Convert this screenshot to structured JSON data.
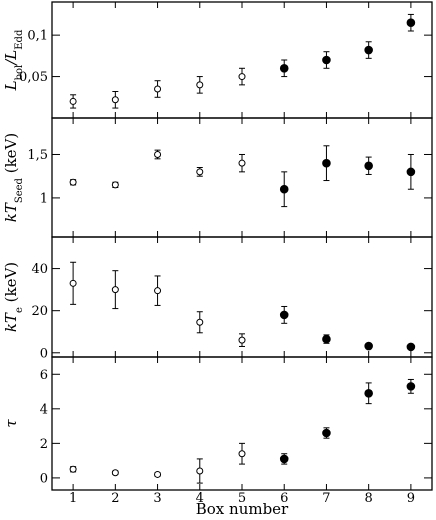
{
  "figure": {
    "xlabel": "Box number"
  },
  "chart_data": [
    {
      "type": "scatter",
      "panel": "lbol",
      "ylabel_main": "L",
      "ylabel_sub": "bol",
      "ylabel_slash": "/L",
      "ylabel_sub2": "Edd",
      "ylim": [
        0,
        0.14
      ],
      "yticks": [
        0.05,
        0.1
      ],
      "ytick_labels": [
        "0,05",
        "0,1"
      ],
      "x": [
        1,
        2,
        3,
        4,
        5,
        6,
        7,
        8,
        9
      ],
      "y": [
        0.02,
        0.022,
        0.035,
        0.04,
        0.05,
        0.06,
        0.07,
        0.082,
        0.115
      ],
      "yerr": [
        0.008,
        0.01,
        0.01,
        0.01,
        0.01,
        0.01,
        0.01,
        0.01,
        0.01
      ],
      "filled": [
        false,
        false,
        false,
        false,
        false,
        true,
        true,
        true,
        true
      ]
    },
    {
      "type": "scatter",
      "panel": "kt_seed",
      "ylabel_main": "kT",
      "ylabel_sub": "Seed",
      "ylabel_unit": " (keV)",
      "ylim": [
        0.55,
        1.92
      ],
      "yticks": [
        1,
        1.5
      ],
      "ytick_labels": [
        "1",
        "1,5"
      ],
      "x": [
        1,
        2,
        3,
        4,
        5,
        6,
        7,
        8,
        9
      ],
      "y": [
        1.18,
        1.15,
        1.5,
        1.3,
        1.4,
        1.1,
        1.4,
        1.37,
        1.3
      ],
      "yerr": [
        0.03,
        0.03,
        0.05,
        0.05,
        0.1,
        0.2,
        0.2,
        0.1,
        0.2
      ],
      "filled": [
        false,
        false,
        false,
        false,
        false,
        true,
        true,
        true,
        true
      ]
    },
    {
      "type": "scatter",
      "panel": "kt_e",
      "ylabel_main": "kT",
      "ylabel_sub": "e",
      "ylabel_unit": " (keV)",
      "ylim": [
        -2,
        55
      ],
      "yticks": [
        0,
        20,
        40
      ],
      "ytick_labels": [
        "0",
        "20",
        "40"
      ],
      "x": [
        1,
        2,
        3,
        4,
        5,
        6,
        7,
        8,
        9
      ],
      "y": [
        33,
        30,
        29.5,
        14.5,
        6,
        18,
        6.5,
        3.2,
        2.8
      ],
      "yerr": [
        10,
        9,
        7,
        5,
        3,
        4,
        2,
        0,
        0
      ],
      "filled": [
        false,
        false,
        false,
        false,
        false,
        true,
        true,
        true,
        true
      ]
    },
    {
      "type": "scatter",
      "panel": "tau",
      "ylabel_main": "τ",
      "ylim": [
        -0.7,
        7
      ],
      "yticks": [
        0,
        2,
        4,
        6
      ],
      "ytick_labels": [
        "0",
        "2",
        "4",
        "6"
      ],
      "x": [
        1,
        2,
        3,
        4,
        5,
        6,
        7,
        8,
        9
      ],
      "y": [
        0.5,
        0.3,
        0.2,
        0.4,
        1.4,
        1.1,
        2.6,
        4.9,
        5.3
      ],
      "yerr": [
        0.15,
        0.1,
        0.1,
        0.7,
        0.6,
        0.3,
        0.3,
        0.6,
        0.4
      ],
      "filled": [
        false,
        false,
        false,
        false,
        false,
        true,
        true,
        true,
        true
      ]
    }
  ],
  "x_axis": {
    "xlim": [
      0.5,
      9.5
    ],
    "ticks": [
      1,
      2,
      3,
      4,
      5,
      6,
      7,
      8,
      9
    ],
    "tick_labels": [
      "1",
      "2",
      "3",
      "4",
      "5",
      "6",
      "7",
      "8",
      "9"
    ]
  }
}
